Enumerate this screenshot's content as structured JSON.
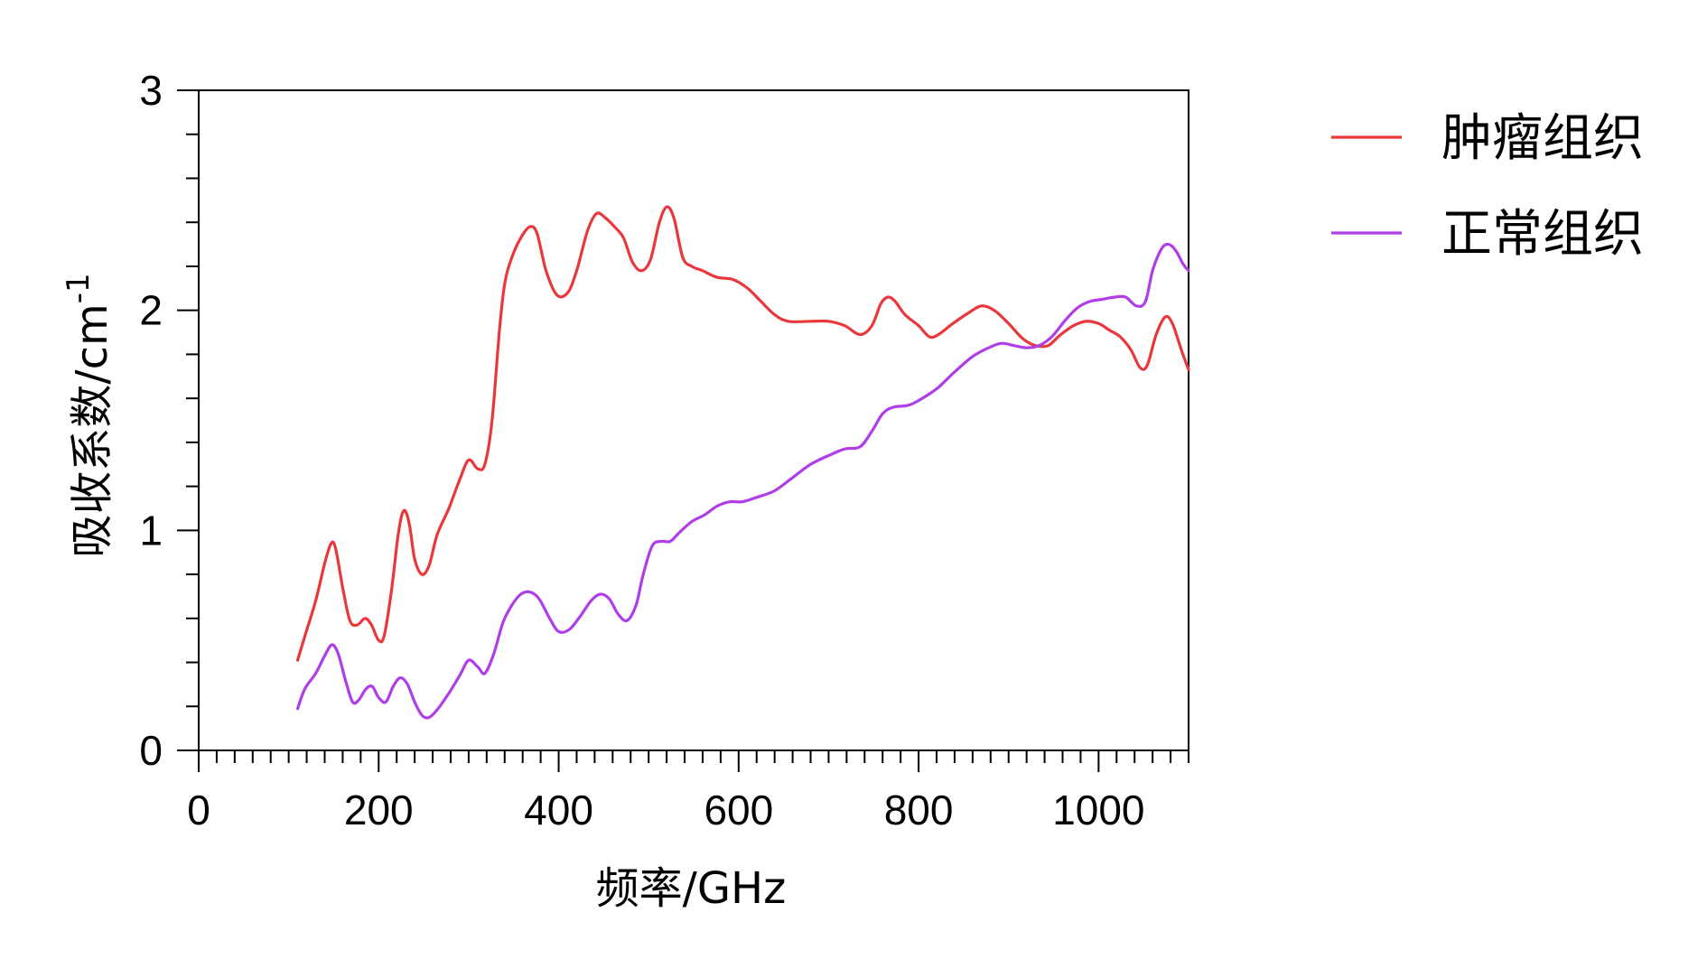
{
  "chart_data": {
    "type": "line",
    "xlabel": "频率/GHz",
    "ylabel": "吸收系数/cm",
    "ylabel_superscript": "-1",
    "xlim": [
      0,
      1100
    ],
    "ylim": [
      0,
      3
    ],
    "x_ticks": [
      0,
      200,
      400,
      600,
      800,
      1000
    ],
    "y_ticks": [
      0,
      1,
      2,
      3
    ],
    "x_tick_labels": [
      "0",
      "200",
      "400",
      "600",
      "800",
      "1000"
    ],
    "y_tick_labels": [
      "0",
      "1",
      "2",
      "3"
    ],
    "x_minor_step": 20,
    "y_minor_step": 0.2,
    "grid": false,
    "legend_position": "right",
    "series": [
      {
        "name": "肿瘤组织",
        "color": "#e8383c",
        "points": [
          [
            110,
            0.41
          ],
          [
            118,
            0.52
          ],
          [
            130,
            0.68
          ],
          [
            140,
            0.85
          ],
          [
            147,
            0.94
          ],
          [
            152,
            0.92
          ],
          [
            160,
            0.74
          ],
          [
            168,
            0.59
          ],
          [
            176,
            0.57
          ],
          [
            185,
            0.6
          ],
          [
            192,
            0.57
          ],
          [
            200,
            0.5
          ],
          [
            206,
            0.52
          ],
          [
            214,
            0.72
          ],
          [
            222,
            0.99
          ],
          [
            228,
            1.09
          ],
          [
            234,
            1.03
          ],
          [
            240,
            0.87
          ],
          [
            248,
            0.8
          ],
          [
            256,
            0.84
          ],
          [
            265,
            0.98
          ],
          [
            278,
            1.1
          ],
          [
            290,
            1.23
          ],
          [
            300,
            1.32
          ],
          [
            310,
            1.28
          ],
          [
            318,
            1.3
          ],
          [
            326,
            1.5
          ],
          [
            334,
            1.9
          ],
          [
            340,
            2.12
          ],
          [
            348,
            2.24
          ],
          [
            358,
            2.33
          ],
          [
            368,
            2.38
          ],
          [
            376,
            2.35
          ],
          [
            386,
            2.18
          ],
          [
            398,
            2.07
          ],
          [
            410,
            2.08
          ],
          [
            420,
            2.18
          ],
          [
            432,
            2.36
          ],
          [
            442,
            2.44
          ],
          [
            452,
            2.42
          ],
          [
            462,
            2.38
          ],
          [
            472,
            2.33
          ],
          [
            482,
            2.22
          ],
          [
            492,
            2.18
          ],
          [
            502,
            2.23
          ],
          [
            512,
            2.4
          ],
          [
            520,
            2.47
          ],
          [
            528,
            2.42
          ],
          [
            538,
            2.24
          ],
          [
            548,
            2.2
          ],
          [
            560,
            2.18
          ],
          [
            576,
            2.15
          ],
          [
            594,
            2.14
          ],
          [
            610,
            2.1
          ],
          [
            625,
            2.04
          ],
          [
            640,
            1.98
          ],
          [
            655,
            1.95
          ],
          [
            680,
            1.95
          ],
          [
            700,
            1.95
          ],
          [
            718,
            1.93
          ],
          [
            735,
            1.89
          ],
          [
            748,
            1.93
          ],
          [
            758,
            2.03
          ],
          [
            766,
            2.06
          ],
          [
            774,
            2.04
          ],
          [
            785,
            1.98
          ],
          [
            800,
            1.93
          ],
          [
            812,
            1.88
          ],
          [
            822,
            1.89
          ],
          [
            838,
            1.94
          ],
          [
            856,
            1.99
          ],
          [
            870,
            2.02
          ],
          [
            884,
            2.0
          ],
          [
            900,
            1.94
          ],
          [
            916,
            1.87
          ],
          [
            930,
            1.84
          ],
          [
            944,
            1.84
          ],
          [
            958,
            1.89
          ],
          [
            972,
            1.93
          ],
          [
            986,
            1.95
          ],
          [
            1000,
            1.94
          ],
          [
            1012,
            1.91
          ],
          [
            1024,
            1.88
          ],
          [
            1036,
            1.82
          ],
          [
            1046,
            1.74
          ],
          [
            1054,
            1.75
          ],
          [
            1064,
            1.89
          ],
          [
            1074,
            1.97
          ],
          [
            1082,
            1.94
          ],
          [
            1092,
            1.82
          ],
          [
            1100,
            1.73
          ]
        ]
      },
      {
        "name": "正常组织",
        "color": "#b03ee8",
        "points": [
          [
            110,
            0.19
          ],
          [
            118,
            0.28
          ],
          [
            130,
            0.35
          ],
          [
            140,
            0.43
          ],
          [
            148,
            0.48
          ],
          [
            155,
            0.44
          ],
          [
            163,
            0.32
          ],
          [
            171,
            0.22
          ],
          [
            178,
            0.23
          ],
          [
            186,
            0.28
          ],
          [
            193,
            0.29
          ],
          [
            200,
            0.24
          ],
          [
            208,
            0.22
          ],
          [
            216,
            0.29
          ],
          [
            224,
            0.33
          ],
          [
            232,
            0.3
          ],
          [
            240,
            0.22
          ],
          [
            248,
            0.16
          ],
          [
            256,
            0.15
          ],
          [
            266,
            0.19
          ],
          [
            278,
            0.26
          ],
          [
            290,
            0.34
          ],
          [
            300,
            0.41
          ],
          [
            310,
            0.38
          ],
          [
            318,
            0.35
          ],
          [
            328,
            0.44
          ],
          [
            338,
            0.58
          ],
          [
            348,
            0.66
          ],
          [
            358,
            0.71
          ],
          [
            368,
            0.72
          ],
          [
            378,
            0.69
          ],
          [
            390,
            0.6
          ],
          [
            400,
            0.54
          ],
          [
            412,
            0.55
          ],
          [
            424,
            0.61
          ],
          [
            436,
            0.68
          ],
          [
            446,
            0.71
          ],
          [
            456,
            0.69
          ],
          [
            466,
            0.62
          ],
          [
            476,
            0.59
          ],
          [
            486,
            0.66
          ],
          [
            494,
            0.8
          ],
          [
            504,
            0.93
          ],
          [
            514,
            0.95
          ],
          [
            524,
            0.95
          ],
          [
            534,
            0.99
          ],
          [
            548,
            1.04
          ],
          [
            562,
            1.07
          ],
          [
            576,
            1.11
          ],
          [
            590,
            1.13
          ],
          [
            604,
            1.13
          ],
          [
            620,
            1.15
          ],
          [
            640,
            1.18
          ],
          [
            660,
            1.24
          ],
          [
            680,
            1.3
          ],
          [
            700,
            1.34
          ],
          [
            718,
            1.37
          ],
          [
            735,
            1.38
          ],
          [
            748,
            1.45
          ],
          [
            760,
            1.53
          ],
          [
            772,
            1.56
          ],
          [
            790,
            1.57
          ],
          [
            808,
            1.61
          ],
          [
            822,
            1.65
          ],
          [
            840,
            1.72
          ],
          [
            860,
            1.79
          ],
          [
            878,
            1.83
          ],
          [
            892,
            1.85
          ],
          [
            906,
            1.84
          ],
          [
            920,
            1.83
          ],
          [
            934,
            1.84
          ],
          [
            948,
            1.88
          ],
          [
            962,
            1.95
          ],
          [
            976,
            2.01
          ],
          [
            990,
            2.04
          ],
          [
            1004,
            2.05
          ],
          [
            1018,
            2.06
          ],
          [
            1030,
            2.06
          ],
          [
            1042,
            2.02
          ],
          [
            1052,
            2.04
          ],
          [
            1060,
            2.18
          ],
          [
            1070,
            2.28
          ],
          [
            1078,
            2.3
          ],
          [
            1086,
            2.27
          ],
          [
            1094,
            2.21
          ],
          [
            1100,
            2.18
          ]
        ]
      }
    ]
  }
}
